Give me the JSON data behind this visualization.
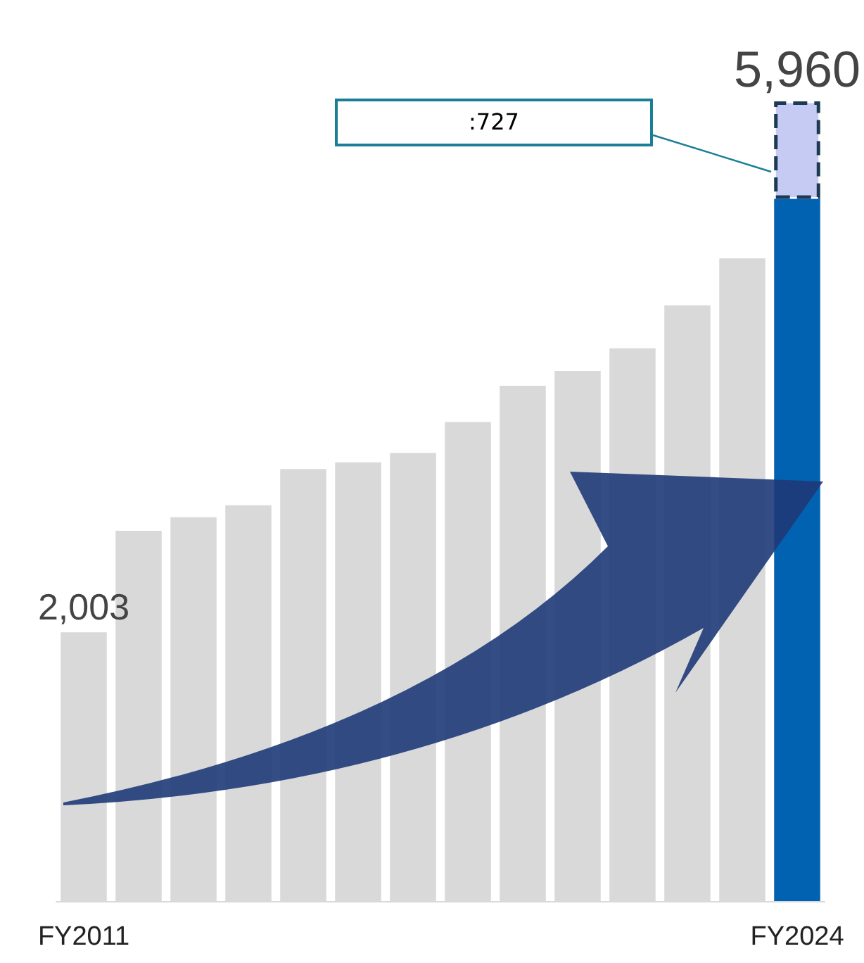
{
  "chart_data": {
    "type": "bar",
    "stacked": true,
    "categories": [
      "FY2011",
      null,
      null,
      null,
      null,
      null,
      null,
      null,
      null,
      null,
      null,
      null,
      null,
      "FY2024"
    ],
    "series": [
      {
        "colors": [
          "#d9d9d9",
          "#d9d9d9",
          "#d9d9d9",
          "#d9d9d9",
          "#d9d9d9",
          "#d9d9d9",
          "#d9d9d9",
          "#d9d9d9",
          "#d9d9d9",
          "#d9d9d9",
          "#d9d9d9",
          "#d9d9d9",
          "#d9d9d9",
          "#0062b0"
        ],
        "values": [
          2003,
          2760,
          2860,
          2950,
          3220,
          3270,
          3340,
          3570,
          3840,
          3950,
          4120,
          4440,
          4790,
          5233
        ],
        "value_labels": [
          "2,003",
          null,
          null,
          null,
          null,
          null,
          null,
          null,
          null,
          null,
          null,
          null,
          null,
          null
        ]
      },
      {
        "color": "#c5cbf3",
        "values": [
          null,
          null,
          null,
          null,
          null,
          null,
          null,
          null,
          null,
          null,
          null,
          null,
          null,
          727
        ]
      }
    ],
    "totals": [
      null,
      null,
      null,
      null,
      null,
      null,
      null,
      null,
      null,
      null,
      null,
      null,
      null,
      "5,960"
    ],
    "annotations": [
      ":727"
    ]
  }
}
